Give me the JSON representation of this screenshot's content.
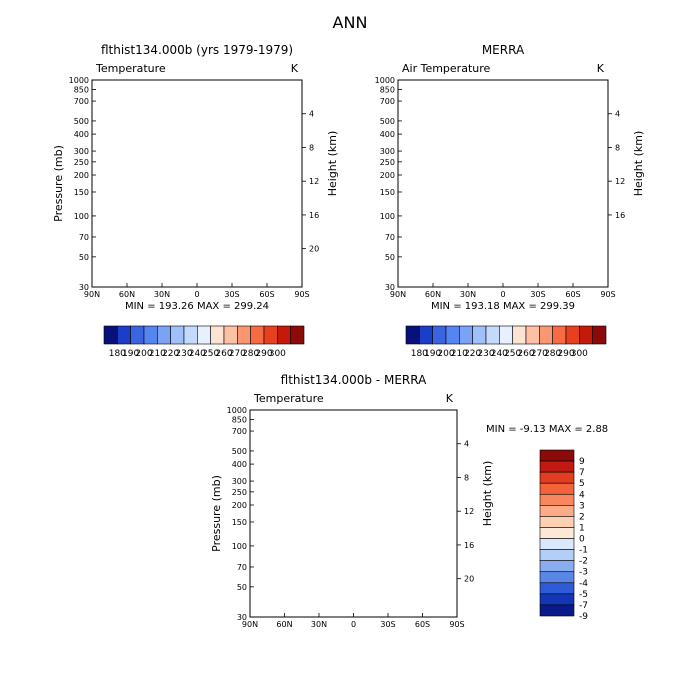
{
  "figure_title": "ANN",
  "colors": {
    "negative_strong": "#0a1a8a",
    "positive_strong": "#8b0a0a",
    "neutral": "#ffffff"
  },
  "chart_data": [
    {
      "type": "heatmap",
      "title": "flthist134.000b (yrs 1979-1979)",
      "subtitle": "Temperature",
      "units": "K",
      "xlabel": "",
      "ylabel": "Pressure (mb)",
      "ylabel_right": "Height (km)",
      "x_ticks": [
        "90N",
        "60N",
        "30N",
        "0",
        "30S",
        "60S",
        "90S"
      ],
      "y_ticks": [
        30,
        50,
        70,
        100,
        150,
        200,
        250,
        300,
        400,
        500,
        700,
        850,
        1000
      ],
      "y_right_ticks": [
        4,
        8,
        12,
        16,
        20
      ],
      "ylim": [
        1000,
        30
      ],
      "y_scale": "log",
      "stats": "MIN = 193.26   MAX = 299.24",
      "colorbar_labels": [
        "180",
        "190",
        "200",
        "210",
        "220",
        "230",
        "240",
        "250",
        "260",
        "270",
        "280",
        "290",
        "300"
      ],
      "data_top_mb": 30
    },
    {
      "type": "heatmap",
      "title": "MERRA",
      "subtitle": "Air Temperature",
      "units": "K",
      "xlabel": "",
      "ylabel": "",
      "ylabel_right": "Height (km)",
      "x_ticks": [
        "90N",
        "60N",
        "30N",
        "0",
        "30S",
        "60S",
        "90S"
      ],
      "y_ticks": [
        30,
        50,
        70,
        100,
        150,
        200,
        250,
        300,
        400,
        500,
        700,
        850,
        1000
      ],
      "y_right_ticks": [
        4,
        8,
        12,
        16
      ],
      "ylim": [
        1000,
        30
      ],
      "y_scale": "log",
      "stats": "MIN = 193.18   MAX = 299.39",
      "colorbar_labels": [
        "180",
        "190",
        "200",
        "210",
        "220",
        "230",
        "240",
        "250",
        "260",
        "270",
        "280",
        "290",
        "300"
      ],
      "data_top_mb": 100
    },
    {
      "type": "heatmap",
      "title": "flthist134.000b - MERRA",
      "subtitle": "Temperature",
      "units": "K",
      "xlabel": "",
      "ylabel": "Pressure (mb)",
      "ylabel_right": "Height (km)",
      "x_ticks": [
        "90N",
        "60N",
        "30N",
        "0",
        "30S",
        "60S",
        "90S"
      ],
      "y_ticks": [
        30,
        50,
        70,
        100,
        150,
        200,
        250,
        300,
        400,
        500,
        700,
        850,
        1000
      ],
      "y_right_ticks": [
        4,
        8,
        12,
        16,
        20
      ],
      "ylim": [
        1000,
        30
      ],
      "y_scale": "log",
      "stats": "MIN =    -9.13   MAX =     2.88",
      "colorbar_labels": [
        "9",
        "7",
        "5",
        "4",
        "3",
        "2",
        "1",
        "0",
        "-1",
        "-2",
        "-3",
        "-4",
        "-5",
        "-7",
        "-9"
      ],
      "data_top_mb": 100
    }
  ]
}
